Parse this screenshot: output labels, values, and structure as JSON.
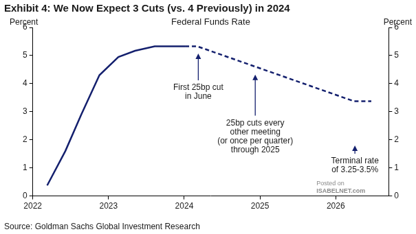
{
  "chart_data": {
    "type": "line",
    "title": "Exhibit 4: We Now Expect 3 Cuts (vs. 4 Previously) in 2024",
    "subtitle": "Federal Funds Rate",
    "y_label": "Percent",
    "y2_label": "Percent",
    "source": "Source: Goldman Sachs Global Investment Research",
    "watermark": [
      "Posted on",
      "ISABELNET.com"
    ],
    "annotations": [
      [
        "First 25bp cut",
        "in June"
      ],
      [
        "25bp cuts every",
        "other meeting",
        "(or once per quarter)",
        "through 2025"
      ],
      [
        "Terminal rate",
        "of 3.25-3.5%"
      ]
    ],
    "x": [
      2022.19,
      2022.43,
      2022.64,
      2022.88,
      2023.13,
      2023.35,
      2023.61,
      2024.01,
      2024.17,
      2026.24,
      2026.47
    ],
    "series": [
      {
        "color": "#14206e",
        "line_style": "solid",
        "marker": "none",
        "values": [
          0.375,
          1.6,
          2.9,
          4.3,
          4.95,
          5.17,
          5.33,
          5.33,
          null,
          null,
          null
        ]
      },
      {
        "color": "#14206e",
        "line_style": "dashed",
        "marker": "none",
        "values": [
          null,
          null,
          null,
          null,
          null,
          null,
          null,
          5.33,
          5.33,
          3.375,
          3.375
        ]
      }
    ],
    "xlim": [
      2022,
      2026.7
    ],
    "xticks": [
      2022,
      2023,
      2024,
      2025,
      2026
    ],
    "ylim": [
      0,
      6
    ],
    "yticks": [
      0,
      1,
      2,
      3,
      4,
      5,
      6
    ],
    "y2lim": [
      0,
      6
    ],
    "y2ticks": [
      0,
      1,
      2,
      3,
      4,
      5,
      6
    ],
    "grid": false
  }
}
